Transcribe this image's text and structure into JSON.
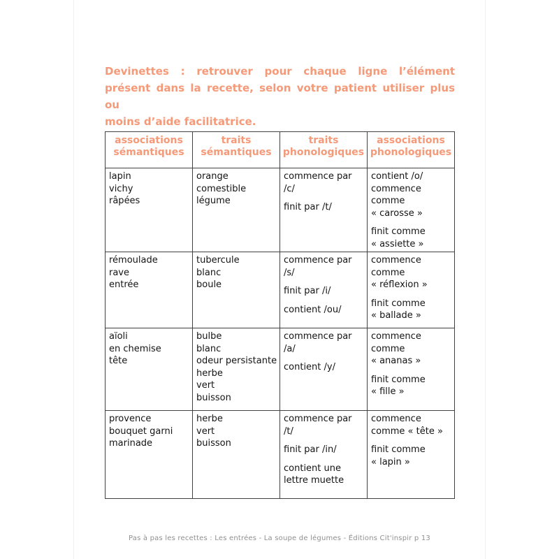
{
  "page": {
    "title_lines": [
      "Devinettes : retrouver pour chaque ligne l’élément",
      "présent dans la recette, selon votre patient utiliser plus ou",
      "moins d’aide facilitatrice."
    ],
    "footer": "Pas à pas les recettes : Les entrées - La soupe de légumes - Éditions Cit'inspir p 13"
  },
  "colors": {
    "accent": "#f59a79",
    "table_border": "#414141",
    "body_text": "#141414",
    "footer_text": "#8f8f8f"
  },
  "table": {
    "headers": [
      "associations\nsémantiques",
      "traits\nsémantiques",
      "traits\nphonologiques",
      "associations\nphonologiques"
    ],
    "rows": [
      {
        "cells": [
          [
            "lapin\nvichy\nrâpées"
          ],
          [
            "orange\ncomestible\nlégume"
          ],
          [
            "commence par\n/c/",
            "finit par /t/"
          ],
          [
            "contient /o/\ncommence\ncomme\n« carosse »",
            "finit comme\n« assiette »"
          ]
        ]
      },
      {
        "cells": [
          [
            "rémoulade\nrave\nentrée"
          ],
          [
            "tubercule\nblanc\nboule"
          ],
          [
            "commence par\n/s/",
            "finit par /i/",
            "contient /ou/"
          ],
          [
            "commence\ncomme\n« réflexion »",
            "finit comme\n« ballade »"
          ]
        ]
      },
      {
        "cells": [
          [
            "aïoli\nen chemise\ntête"
          ],
          [
            "bulbe\nblanc\nodeur persistante\nherbe\nvert\nbuisson"
          ],
          [
            "commence par\n/a/",
            "contient /y/"
          ],
          [
            "commence\ncomme\n« ananas »",
            "finit comme\n« fille »"
          ]
        ]
      },
      {
        "cells": [
          [
            "provence\nbouquet garni\nmarinade"
          ],
          [
            "herbe\nvert\nbuisson"
          ],
          [
            "commence par\n/t/",
            "finit par /in/",
            "contient une\nlettre muette"
          ],
          [
            "commence\ncomme « tête »",
            "finit comme\n« lapin »"
          ]
        ]
      }
    ]
  }
}
